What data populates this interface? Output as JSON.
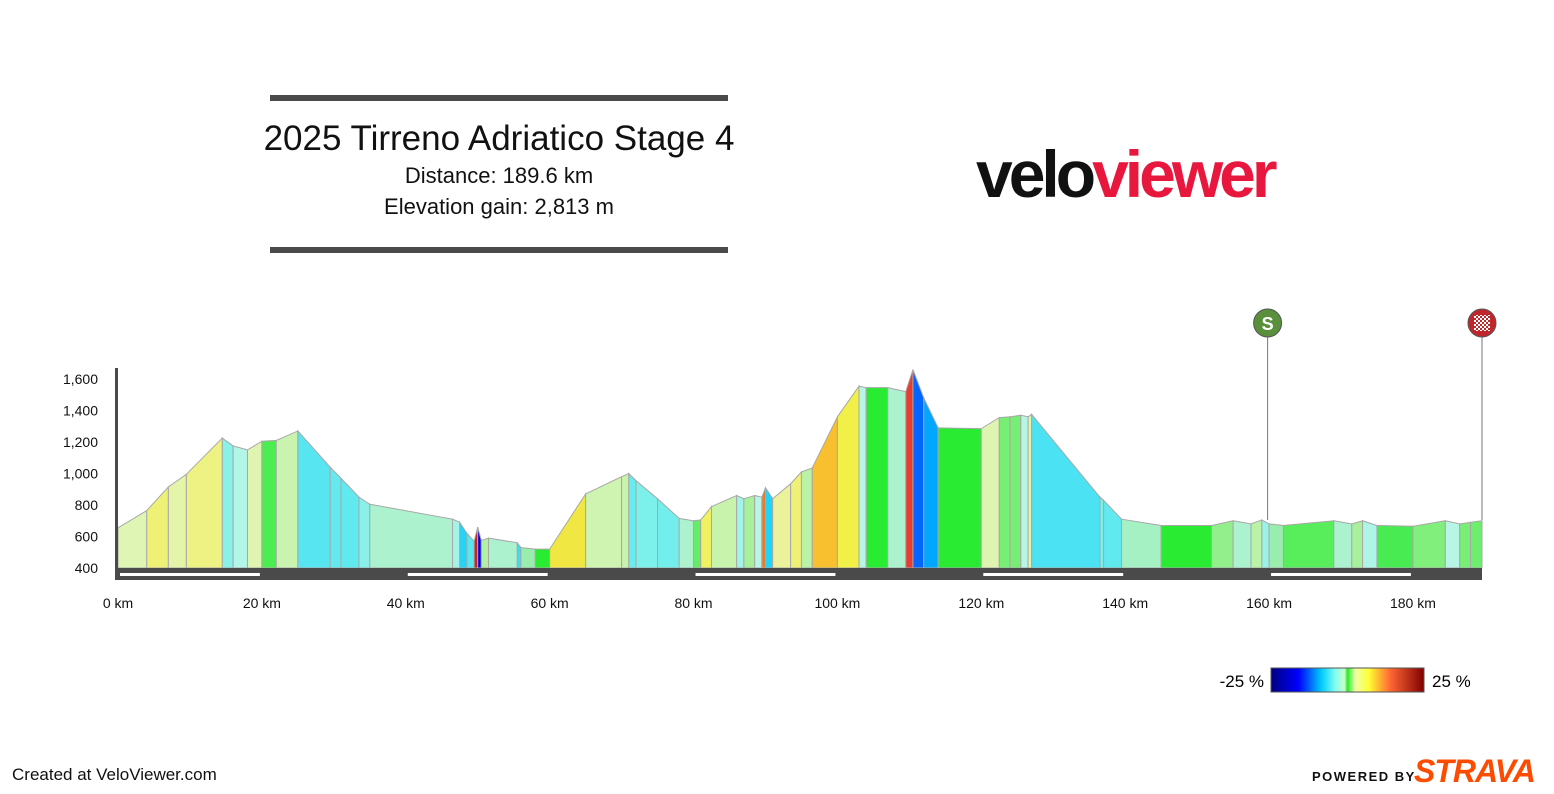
{
  "header": {
    "title": "2025 Tirreno Adriatico Stage 4",
    "distance": "Distance: 189.6 km",
    "elevation_gain": "Elevation gain: 2,813 m"
  },
  "logo": {
    "part1": "velo",
    "part2": "viewer"
  },
  "footer": {
    "created": "Created at VeloViewer.com",
    "powered": "POWERED BY",
    "strava": "STRAVA"
  },
  "markers": [
    {
      "label": "S",
      "km": 159.8,
      "color": "#5a8f3c"
    },
    {
      "label": "finish",
      "km": 189.6,
      "color": "#c0272d"
    }
  ],
  "gradient_legend": {
    "min_label": "-25 %",
    "max_label": "25 %"
  },
  "colors": {
    "axis": "#4a4a4a",
    "profile_stroke": "#a8a8a8"
  },
  "chart_data": {
    "type": "area",
    "xlabel": "",
    "ylabel": "",
    "xlim": [
      0,
      189.6
    ],
    "ylim": [
      400,
      1650
    ],
    "x_ticks": [
      0,
      20,
      40,
      60,
      80,
      100,
      120,
      140,
      160,
      180
    ],
    "x_tick_labels": [
      "0 km",
      "20 km",
      "40 km",
      "60 km",
      "80 km",
      "100 km",
      "120 km",
      "140 km",
      "160 km",
      "180 km"
    ],
    "y_ticks": [
      400,
      600,
      800,
      1000,
      1200,
      1400,
      1600
    ],
    "y_tick_labels": [
      "400",
      "600",
      "800",
      "1,000",
      "1,200",
      "1,400",
      "1,600"
    ],
    "gradient_range": [
      -25,
      25
    ],
    "series": [
      {
        "x": [
          0,
          4,
          7,
          9.5,
          14.5,
          16,
          18,
          20,
          22,
          25,
          29.5,
          31,
          33.5,
          35,
          46.5,
          47.5,
          48.5,
          49.5,
          50,
          50.5,
          51.5,
          55.5,
          56,
          58,
          60,
          65,
          70,
          71,
          72,
          75,
          78,
          80,
          81,
          82.5,
          86,
          87,
          88.5,
          89.5,
          90,
          91,
          93.5,
          95,
          96.5,
          100,
          103,
          104,
          107,
          109.5,
          110.5,
          112,
          114,
          120,
          122.5,
          124,
          125.5,
          126.5,
          127,
          136.5,
          137,
          139.5,
          145,
          152,
          155,
          157.5,
          159,
          160,
          162,
          169,
          171.5,
          173,
          175,
          180,
          184.5,
          186.5,
          188,
          189.6
        ],
        "elevation": [
          655,
          765,
          915,
          995,
          1225,
          1175,
          1150,
          1205,
          1210,
          1270,
          1040,
          970,
          850,
          805,
          710,
          690,
          620,
          570,
          660,
          575,
          590,
          560,
          530,
          520,
          520,
          870,
          980,
          1000,
          955,
          840,
          715,
          700,
          705,
          790,
          860,
          840,
          860,
          850,
          910,
          840,
          935,
          1010,
          1035,
          1360,
          1555,
          1545,
          1545,
          1520,
          1660,
          1480,
          1290,
          1285,
          1355,
          1360,
          1370,
          1360,
          1375,
          850,
          830,
          710,
          670,
          670,
          700,
          680,
          705,
          680,
          670,
          700,
          680,
          700,
          670,
          665,
          700,
          680,
          690,
          700
        ],
        "gradient": [
          2.7,
          5.0,
          3.2,
          4.6,
          -3.3,
          -1.3,
          2.8,
          0.3,
          2.1,
          -5.1,
          -4.7,
          -4.8,
          -3.2,
          -0.8,
          -2.0,
          -7.0,
          -5.0,
          18.0,
          -17.0,
          1.5,
          -0.8,
          -6.0,
          -0.5,
          0.0,
          7.0,
          2.2,
          2.0,
          -4.5,
          -3.8,
          -4.2,
          -0.8,
          0.5,
          5.7,
          2.0,
          -2.0,
          1.3,
          -1.0,
          12.0,
          -7.0,
          3.8,
          5.0,
          1.7,
          9.3,
          6.4,
          -1.0,
          0.0,
          -0.8,
          14.0,
          -12.0,
          -9.5,
          0.0,
          2.8,
          0.7,
          0.7,
          -1.0,
          3.0,
          -5.5,
          -4.0,
          -4.8,
          -0.7,
          0.0,
          1.0,
          -0.8,
          1.7,
          -2.5,
          -0.5,
          0.4,
          -0.8,
          1.3,
          -1.5,
          -0.1,
          0.8,
          -1.0,
          0.7,
          0.6
        ]
      }
    ]
  }
}
